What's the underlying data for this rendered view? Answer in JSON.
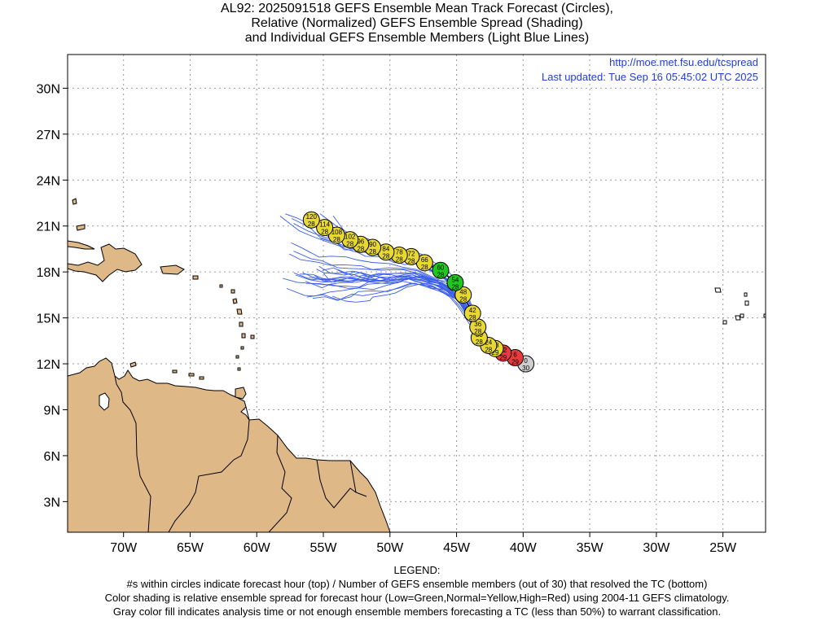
{
  "title": {
    "line1": "AL92: 2025091518 GEFS Ensemble Mean Track Forecast (Circles),",
    "line2": "Relative (Normalized) GEFS Ensemble Spread (Shading)",
    "line3": "and Individual GEFS Ensemble Members (Light Blue Lines)"
  },
  "credit": {
    "url": "http://moe.met.fsu.edu/tcspread",
    "updated": "Last updated: Tue Sep 16 05:45:02 UTC 2025"
  },
  "axes": {
    "lon_ticks": [
      "70W",
      "65W",
      "60W",
      "55W",
      "50W",
      "45W",
      "40W",
      "35W",
      "30W",
      "25W"
    ],
    "lat_ticks": [
      "30N",
      "27N",
      "24N",
      "21N",
      "18N",
      "15N",
      "12N",
      "9N",
      "6N",
      "3N"
    ],
    "lon_values": [
      -70,
      -65,
      -60,
      -55,
      -50,
      -45,
      -40,
      -35,
      -30,
      -25
    ],
    "lat_values": [
      30,
      27,
      24,
      21,
      18,
      15,
      12,
      9,
      6,
      3
    ],
    "lon_range": [
      -74.2,
      -21.8
    ],
    "lat_range": [
      1.0,
      32.2
    ],
    "grid": true
  },
  "colors": {
    "land": "#dfb888",
    "member_lines": "#3b5ee8",
    "low": "#1ec81e",
    "normal": "#e8d832",
    "high": "#e83c3c",
    "gray": "#cfcfcf",
    "credit": "#1f3fd6"
  },
  "track": [
    {
      "hour": "120",
      "members": "28",
      "lon": -55.9,
      "lat": 21.4,
      "class": "normal"
    },
    {
      "hour": "114",
      "members": "28",
      "lon": -54.9,
      "lat": 20.9,
      "class": "normal"
    },
    {
      "hour": "108",
      "members": "28",
      "lon": -54.0,
      "lat": 20.4,
      "class": "normal"
    },
    {
      "hour": "102",
      "members": "28",
      "lon": -53.0,
      "lat": 20.1,
      "class": "normal"
    },
    {
      "hour": "96",
      "members": "28",
      "lon": -52.2,
      "lat": 19.8,
      "class": "normal"
    },
    {
      "hour": "90",
      "members": "28",
      "lon": -51.3,
      "lat": 19.6,
      "class": "normal"
    },
    {
      "hour": "84",
      "members": "28",
      "lon": -50.3,
      "lat": 19.3,
      "class": "normal"
    },
    {
      "hour": "78",
      "members": "28",
      "lon": -49.3,
      "lat": 19.1,
      "class": "normal"
    },
    {
      "hour": "72",
      "members": "28",
      "lon": -48.4,
      "lat": 19.0,
      "class": "normal"
    },
    {
      "hour": "66",
      "members": "28",
      "lon": -47.4,
      "lat": 18.6,
      "class": "normal"
    },
    {
      "hour": "60",
      "members": "28",
      "lon": -46.2,
      "lat": 18.1,
      "class": "low"
    },
    {
      "hour": "54",
      "members": "28",
      "lon": -45.1,
      "lat": 17.3,
      "class": "low"
    },
    {
      "hour": "48",
      "members": "28",
      "lon": -44.5,
      "lat": 16.5,
      "class": "normal"
    },
    {
      "hour": "42",
      "members": "28",
      "lon": -43.8,
      "lat": 15.3,
      "class": "normal"
    },
    {
      "hour": "36",
      "members": "28",
      "lon": -43.4,
      "lat": 14.4,
      "class": "normal"
    },
    {
      "hour": "30",
      "members": "28",
      "lon": -43.3,
      "lat": 13.7,
      "class": "normal"
    },
    {
      "hour": "24",
      "members": "28",
      "lon": -42.6,
      "lat": 13.2,
      "class": "normal"
    },
    {
      "hour": "18",
      "members": "29",
      "lon": -42.1,
      "lat": 13.0,
      "class": "normal"
    },
    {
      "hour": "12",
      "members": "29",
      "lon": -41.5,
      "lat": 12.7,
      "class": "high"
    },
    {
      "hour": "6",
      "members": "29",
      "lon": -40.6,
      "lat": 12.4,
      "class": "high"
    },
    {
      "hour": "0",
      "members": "30",
      "lon": -39.8,
      "lat": 12.0,
      "class": "gray"
    }
  ],
  "legend": {
    "heading": "LEGEND:",
    "line1": "#s within circles indicate forecast hour (top) / Number of GEFS ensemble members (out of 30) that resolved the TC (bottom)",
    "line2": "Color shading is relative ensemble spread for forecast hour (Low=Green,Normal=Yellow,High=Red) using 2004-11 GEFS climatology.",
    "line3": "Gray color fill indicates analysis time or not enough ensemble members forecasting a TC (less than 50%) to warrant classification."
  }
}
